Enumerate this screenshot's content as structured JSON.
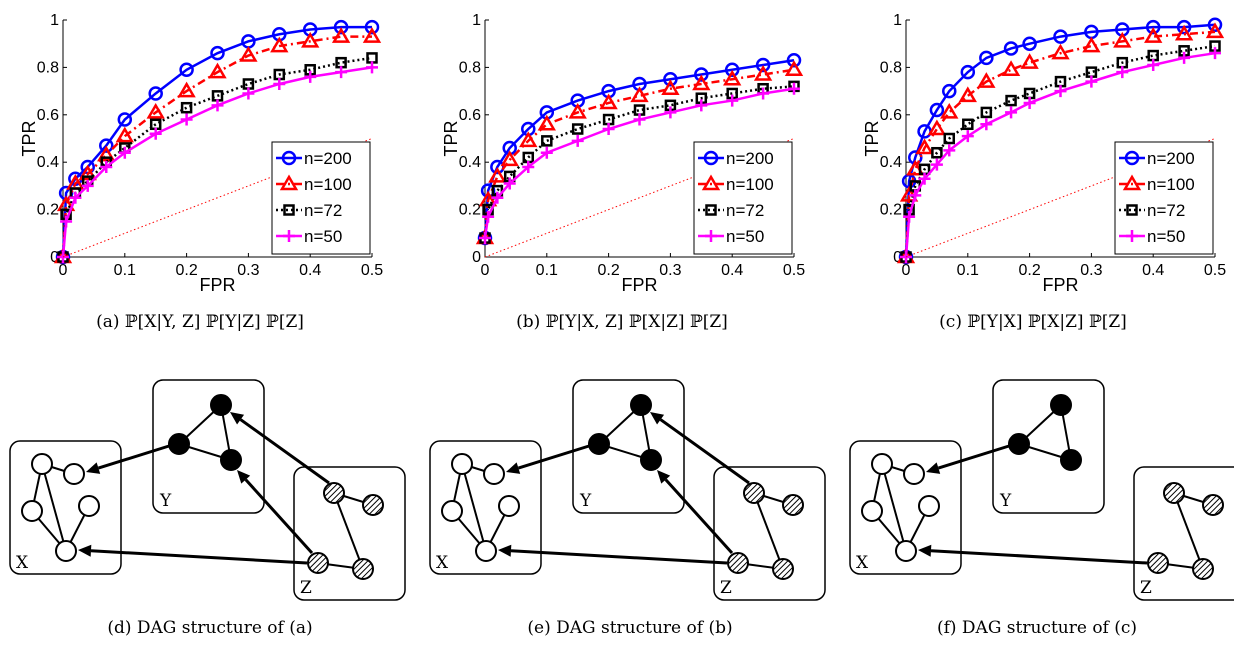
{
  "colors": {
    "blue": "#0000ff",
    "red": "#ff0000",
    "black": "#000000",
    "magenta": "#ff00ff"
  },
  "chart_data": [
    {
      "type": "line",
      "caption": "(a) ℙ[X|Y, Z] ℙ[Y|Z] ℙ[Z]",
      "xlabel": "FPR",
      "ylabel": "TPR",
      "xlim": [
        0,
        0.5
      ],
      "ylim": [
        0,
        1
      ],
      "xticks": [
        "0",
        "0.1",
        "0.2",
        "0.3",
        "0.4",
        "0.5"
      ],
      "yticks": [
        "0",
        "0.2",
        "0.4",
        "0.6",
        "0.8",
        "1"
      ],
      "legend_position": "bottom-right",
      "series": [
        {
          "name": "n=200",
          "color": "#0000ff",
          "marker": "circle",
          "line": "solid",
          "x": [
            0,
            0.005,
            0.02,
            0.04,
            0.07,
            0.1,
            0.15,
            0.2,
            0.25,
            0.3,
            0.35,
            0.4,
            0.45,
            0.5
          ],
          "y": [
            0,
            0.27,
            0.33,
            0.38,
            0.47,
            0.58,
            0.69,
            0.79,
            0.86,
            0.91,
            0.94,
            0.96,
            0.97,
            0.97
          ]
        },
        {
          "name": "n=100",
          "color": "#ff0000",
          "marker": "triangle",
          "line": "dashdot",
          "x": [
            0,
            0.005,
            0.02,
            0.04,
            0.07,
            0.1,
            0.15,
            0.2,
            0.25,
            0.3,
            0.35,
            0.4,
            0.45,
            0.5
          ],
          "y": [
            0,
            0.22,
            0.31,
            0.35,
            0.43,
            0.51,
            0.61,
            0.7,
            0.78,
            0.85,
            0.89,
            0.91,
            0.93,
            0.93
          ]
        },
        {
          "name": "n=72",
          "color": "#000000",
          "marker": "square",
          "line": "dotted",
          "x": [
            0,
            0.005,
            0.02,
            0.04,
            0.07,
            0.1,
            0.15,
            0.2,
            0.25,
            0.3,
            0.35,
            0.4,
            0.45,
            0.5
          ],
          "y": [
            0,
            0.18,
            0.27,
            0.32,
            0.4,
            0.46,
            0.56,
            0.63,
            0.68,
            0.73,
            0.77,
            0.79,
            0.82,
            0.84
          ]
        },
        {
          "name": "n=50",
          "color": "#ff00ff",
          "marker": "plus",
          "line": "solid",
          "x": [
            0,
            0.005,
            0.02,
            0.04,
            0.07,
            0.1,
            0.15,
            0.2,
            0.25,
            0.3,
            0.35,
            0.4,
            0.45,
            0.5
          ],
          "y": [
            0,
            0.15,
            0.25,
            0.3,
            0.38,
            0.44,
            0.52,
            0.58,
            0.64,
            0.69,
            0.73,
            0.76,
            0.78,
            0.8
          ]
        },
        {
          "name": "",
          "color": "#ff0000",
          "marker": "none",
          "line": "chance",
          "x": [
            0,
            0.5
          ],
          "y": [
            0,
            0.5
          ]
        }
      ]
    },
    {
      "type": "line",
      "caption": "(b) ℙ[Y|X, Z] ℙ[X|Z] ℙ[Z]",
      "xlabel": "FPR",
      "ylabel": "TPR",
      "xlim": [
        0,
        0.5
      ],
      "ylim": [
        0,
        1
      ],
      "xticks": [
        "0",
        "0.1",
        "0.2",
        "0.3",
        "0.4",
        "0.5"
      ],
      "yticks": [
        "0",
        "0.2",
        "0.4",
        "0.6",
        "0.8",
        "1"
      ],
      "legend_position": "bottom-right",
      "series": [
        {
          "name": "n=200",
          "color": "#0000ff",
          "marker": "circle",
          "line": "solid",
          "x": [
            0,
            0.005,
            0.02,
            0.04,
            0.07,
            0.1,
            0.15,
            0.2,
            0.25,
            0.3,
            0.35,
            0.4,
            0.45,
            0.5
          ],
          "y": [
            0.08,
            0.28,
            0.38,
            0.46,
            0.54,
            0.61,
            0.66,
            0.7,
            0.73,
            0.75,
            0.77,
            0.79,
            0.81,
            0.83
          ]
        },
        {
          "name": "n=100",
          "color": "#ff0000",
          "marker": "triangle",
          "line": "dashdot",
          "x": [
            0,
            0.005,
            0.02,
            0.04,
            0.07,
            0.1,
            0.15,
            0.2,
            0.25,
            0.3,
            0.35,
            0.4,
            0.45,
            0.5
          ],
          "y": [
            0.08,
            0.24,
            0.34,
            0.41,
            0.49,
            0.56,
            0.61,
            0.65,
            0.68,
            0.71,
            0.73,
            0.75,
            0.77,
            0.79
          ]
        },
        {
          "name": "n=72",
          "color": "#000000",
          "marker": "square",
          "line": "dotted",
          "x": [
            0,
            0.005,
            0.02,
            0.04,
            0.07,
            0.1,
            0.15,
            0.2,
            0.25,
            0.3,
            0.35,
            0.4,
            0.45,
            0.5
          ],
          "y": [
            0.08,
            0.2,
            0.28,
            0.34,
            0.42,
            0.49,
            0.54,
            0.58,
            0.62,
            0.64,
            0.67,
            0.69,
            0.71,
            0.72
          ]
        },
        {
          "name": "n=50",
          "color": "#ff00ff",
          "marker": "plus",
          "line": "solid",
          "x": [
            0,
            0.005,
            0.02,
            0.04,
            0.07,
            0.1,
            0.15,
            0.2,
            0.25,
            0.3,
            0.35,
            0.4,
            0.45,
            0.5
          ],
          "y": [
            0.08,
            0.17,
            0.25,
            0.31,
            0.38,
            0.44,
            0.49,
            0.54,
            0.58,
            0.61,
            0.64,
            0.66,
            0.69,
            0.71
          ]
        },
        {
          "name": "",
          "color": "#ff0000",
          "marker": "none",
          "line": "chance",
          "x": [
            0,
            0.5
          ],
          "y": [
            0,
            0.5
          ]
        }
      ]
    },
    {
      "type": "line",
      "caption": "(c) ℙ[Y|X] ℙ[X|Z] ℙ[Z]",
      "xlabel": "FPR",
      "ylabel": "TPR",
      "xlim": [
        0,
        0.5
      ],
      "ylim": [
        0,
        1
      ],
      "xticks": [
        "0",
        "0.1",
        "0.2",
        "0.3",
        "0.4",
        "0.5"
      ],
      "yticks": [
        "0",
        "0.2",
        "0.4",
        "0.6",
        "0.8",
        "1"
      ],
      "legend_position": "bottom-right",
      "series": [
        {
          "name": "n=200",
          "color": "#0000ff",
          "marker": "circle",
          "line": "solid",
          "x": [
            0,
            0.005,
            0.015,
            0.03,
            0.05,
            0.07,
            0.1,
            0.13,
            0.17,
            0.2,
            0.25,
            0.3,
            0.35,
            0.4,
            0.45,
            0.5
          ],
          "y": [
            0,
            0.32,
            0.42,
            0.53,
            0.62,
            0.7,
            0.78,
            0.84,
            0.88,
            0.9,
            0.93,
            0.95,
            0.96,
            0.97,
            0.97,
            0.98
          ]
        },
        {
          "name": "n=100",
          "color": "#ff0000",
          "marker": "triangle",
          "line": "dashdot",
          "x": [
            0,
            0.005,
            0.015,
            0.03,
            0.05,
            0.07,
            0.1,
            0.13,
            0.17,
            0.2,
            0.25,
            0.3,
            0.35,
            0.4,
            0.45,
            0.5
          ],
          "y": [
            0,
            0.26,
            0.37,
            0.46,
            0.54,
            0.61,
            0.68,
            0.74,
            0.79,
            0.82,
            0.86,
            0.89,
            0.91,
            0.93,
            0.94,
            0.95
          ]
        },
        {
          "name": "n=72",
          "color": "#000000",
          "marker": "square",
          "line": "dotted",
          "x": [
            0,
            0.005,
            0.015,
            0.03,
            0.05,
            0.07,
            0.1,
            0.13,
            0.17,
            0.2,
            0.25,
            0.3,
            0.35,
            0.4,
            0.45,
            0.5
          ],
          "y": [
            0,
            0.2,
            0.3,
            0.37,
            0.44,
            0.5,
            0.56,
            0.61,
            0.66,
            0.69,
            0.74,
            0.78,
            0.82,
            0.85,
            0.87,
            0.89
          ]
        },
        {
          "name": "n=50",
          "color": "#ff00ff",
          "marker": "plus",
          "line": "solid",
          "x": [
            0,
            0.005,
            0.015,
            0.03,
            0.05,
            0.07,
            0.1,
            0.13,
            0.17,
            0.2,
            0.25,
            0.3,
            0.35,
            0.4,
            0.45,
            0.5
          ],
          "y": [
            0,
            0.17,
            0.26,
            0.33,
            0.39,
            0.45,
            0.51,
            0.56,
            0.61,
            0.65,
            0.7,
            0.74,
            0.78,
            0.81,
            0.84,
            0.86
          ]
        },
        {
          "name": "",
          "color": "#ff0000",
          "marker": "none",
          "line": "chance",
          "x": [
            0,
            0.5
          ],
          "y": [
            0,
            0.5
          ]
        }
      ]
    }
  ],
  "dags": [
    {
      "caption": "(d) DAG structure of (a)",
      "labels": {
        "x": "X",
        "y": "Y",
        "z": "Z"
      },
      "z_into_y": true
    },
    {
      "caption": "(e) DAG structure of (b)",
      "labels": {
        "x": "X",
        "y": "Y",
        "z": "Z"
      },
      "z_into_y": true
    },
    {
      "caption": "(f) DAG structure of (c)",
      "labels": {
        "x": "X",
        "y": "Y",
        "z": "Z"
      },
      "z_into_y": false
    }
  ]
}
